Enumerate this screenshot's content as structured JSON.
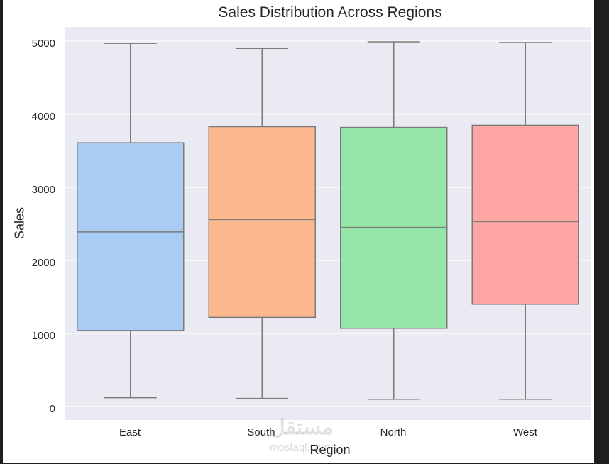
{
  "chart_data": {
    "type": "box",
    "title": "Sales Distribution Across Regions",
    "xlabel": "Region",
    "ylabel": "Sales",
    "categories": [
      "East",
      "South",
      "North",
      "West"
    ],
    "ylim": [
      -150,
      5250
    ],
    "yticks": [
      0,
      1000,
      2000,
      3000,
      4000,
      5000
    ],
    "grid": true,
    "legend": null,
    "series": [
      {
        "name": "East",
        "color": "#a1c9f4",
        "whisker_low": 120,
        "q1": 1040,
        "median": 2390,
        "q3": 3610,
        "whisker_high": 4970
      },
      {
        "name": "South",
        "color": "#ffb482",
        "whisker_low": 110,
        "q1": 1220,
        "median": 2560,
        "q3": 3830,
        "whisker_high": 4900
      },
      {
        "name": "North",
        "color": "#8de5a1",
        "whisker_low": 100,
        "q1": 1070,
        "median": 2450,
        "q3": 3820,
        "whisker_high": 4990
      },
      {
        "name": "West",
        "color": "#ff9f9b",
        "whisker_low": 100,
        "q1": 1400,
        "median": 2530,
        "q3": 3850,
        "whisker_high": 4980
      }
    ]
  },
  "labels": {
    "title": "Sales Distribution Across Regions",
    "xlabel": "Region",
    "ylabel": "Sales",
    "yticks": [
      "0",
      "1000",
      "2000",
      "3000",
      "4000",
      "5000"
    ],
    "xticks": [
      "East",
      "South",
      "North",
      "West"
    ]
  },
  "watermark": {
    "arabic": "مستقل",
    "latin": "mostaql.com"
  },
  "style": {
    "plot_bg": "#eaeaf2",
    "grid_color": "#ffffff",
    "line_color": "#7a7a7a"
  }
}
